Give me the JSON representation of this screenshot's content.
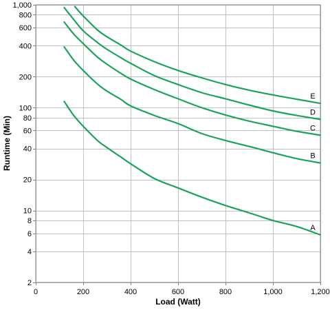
{
  "chart_data": {
    "type": "line",
    "xlabel": "Load (Watt)",
    "ylabel": "Runtime (Min)",
    "xlim": [
      0,
      1200
    ],
    "ylim": [
      2,
      1000
    ],
    "yscale": "log",
    "grid": true,
    "line_color": "#1aa35a",
    "x_ticks": [
      0,
      200,
      400,
      600,
      800,
      1000,
      1200
    ],
    "x_tick_labels": [
      "0",
      "200",
      "400",
      "600",
      "800",
      "1,000",
      "1,200"
    ],
    "y_ticks": [
      2,
      4,
      6,
      8,
      10,
      20,
      40,
      60,
      80,
      100,
      200,
      400,
      600,
      800,
      1000
    ],
    "y_tick_labels": [
      "2",
      "4",
      "6",
      "8",
      "10",
      "20",
      "40",
      "60",
      "80",
      "100",
      "200",
      "400",
      "600",
      "800",
      "1,000"
    ],
    "series": [
      {
        "name": "A",
        "x": [
          120,
          160,
          200,
          260,
          300,
          360,
          400,
          500,
          600,
          700,
          800,
          900,
          1000,
          1100,
          1200
        ],
        "y": [
          115,
          84,
          66,
          48,
          41,
          33,
          28.5,
          20.5,
          16.6,
          13.5,
          11.2,
          9.5,
          8,
          7,
          5.8
        ]
      },
      {
        "name": "B",
        "x": [
          120,
          160,
          200,
          260,
          300,
          360,
          400,
          500,
          600,
          700,
          800,
          900,
          1000,
          1100,
          1200
        ],
        "y": [
          390,
          290,
          230,
          170,
          145,
          120,
          104,
          84,
          70,
          56,
          48,
          42,
          36.5,
          32,
          29
        ]
      },
      {
        "name": "C",
        "x": [
          120,
          160,
          200,
          260,
          300,
          360,
          400,
          500,
          600,
          700,
          800,
          900,
          1000,
          1100,
          1200
        ],
        "y": [
          680,
          520,
          420,
          310,
          265,
          215,
          190,
          150,
          122,
          100,
          85,
          74,
          66,
          59,
          54
        ]
      },
      {
        "name": "D",
        "x": [
          120,
          160,
          200,
          260,
          300,
          360,
          400,
          500,
          600,
          700,
          800,
          900,
          1000,
          1100,
          1200
        ],
        "y": [
          940,
          720,
          560,
          430,
          370,
          305,
          270,
          205,
          168,
          140,
          122,
          106,
          93,
          84,
          77
        ]
      },
      {
        "name": "E",
        "x": [
          165,
          200,
          260,
          300,
          360,
          400,
          500,
          600,
          700,
          800,
          900,
          1000,
          1100,
          1200
        ],
        "y": [
          960,
          780,
          570,
          490,
          405,
          355,
          280,
          230,
          195,
          168,
          148,
          133,
          121,
          110
        ]
      }
    ]
  }
}
